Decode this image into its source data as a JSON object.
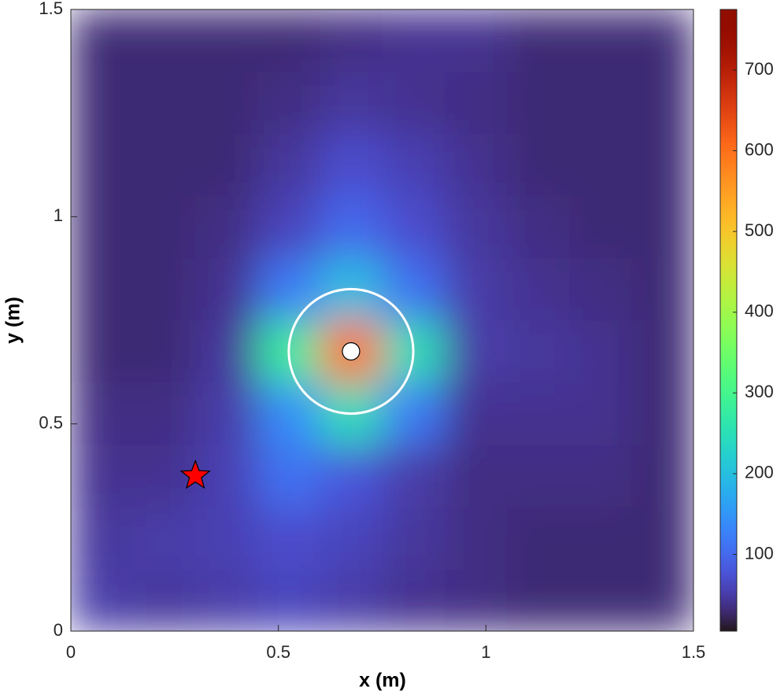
{
  "chart_data": {
    "type": "heatmap",
    "colormap": "turbo",
    "xlabel": "x (m)",
    "ylabel": "y (m)",
    "xlim": [
      0,
      1.5
    ],
    "ylim": [
      0,
      1.5
    ],
    "xticks": [
      0,
      0.5,
      1,
      1.5
    ],
    "yticks": [
      0,
      0.5,
      1,
      1.5
    ],
    "z": [
      [
        50,
        45,
        50,
        60,
        50,
        40,
        35,
        30,
        30,
        30
      ],
      [
        45,
        50,
        55,
        70,
        60,
        45,
        35,
        30,
        30,
        30
      ],
      [
        40,
        40,
        55,
        110,
        80,
        50,
        35,
        35,
        35,
        30
      ],
      [
        35,
        35,
        50,
        140,
        250,
        120,
        40,
        40,
        40,
        30
      ],
      [
        30,
        30,
        45,
        280,
        600,
        250,
        50,
        45,
        40,
        30
      ],
      [
        30,
        30,
        40,
        120,
        200,
        110,
        50,
        40,
        35,
        30
      ],
      [
        30,
        30,
        35,
        60,
        100,
        70,
        45,
        35,
        30,
        30
      ],
      [
        30,
        30,
        30,
        45,
        70,
        55,
        40,
        30,
        30,
        30
      ],
      [
        30,
        30,
        30,
        35,
        45,
        40,
        35,
        30,
        30,
        30
      ],
      [
        30,
        30,
        30,
        30,
        35,
        40,
        40,
        30,
        30,
        30
      ]
    ],
    "clim": [
      5,
      775
    ],
    "cticks": [
      100,
      200,
      300,
      400,
      500,
      600,
      700
    ],
    "circle": {
      "x": 0.675,
      "y": 0.675,
      "r": 0.15,
      "color": "#ffffff"
    },
    "markers": [
      {
        "shape": "star",
        "x": 0.3,
        "y": 0.375,
        "color": "#ff0000"
      },
      {
        "shape": "dot",
        "x": 0.675,
        "y": 0.675,
        "color": "#ffffff"
      }
    ]
  }
}
